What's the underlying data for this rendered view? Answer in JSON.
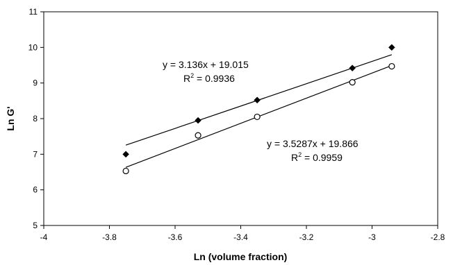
{
  "chart_data": {
    "type": "scatter",
    "xlabel": "Ln (volume fraction)",
    "ylabel": "Ln G'",
    "xlim": [
      -4,
      -2.8
    ],
    "ylim": [
      5,
      11
    ],
    "xticks": [
      "-4",
      "-3.8",
      "-3.6",
      "-3.4",
      "-3.2",
      "-3",
      "-2.8"
    ],
    "yticks": [
      "5",
      "6",
      "7",
      "8",
      "9",
      "10",
      "11"
    ],
    "xtick_values": [
      -4,
      -3.8,
      -3.6,
      -3.4,
      -3.2,
      -3,
      -2.8
    ],
    "ytick_values": [
      5,
      6,
      7,
      8,
      9,
      10,
      11
    ],
    "grid": false,
    "legend": "none",
    "series": [
      {
        "marker": "filled-diamond",
        "color": "#000000",
        "x": [
          -3.75,
          -3.53,
          -3.35,
          -3.06,
          -2.94
        ],
        "y": [
          7.0,
          7.95,
          8.52,
          9.42,
          10.0
        ],
        "trendline": {
          "slope": 3.136,
          "intercept": 19.015
        },
        "equation": "y = 3.136x + 19.015",
        "r2_label": "R",
        "r2_sup": "2",
        "r2_value": " = 0.9936"
      },
      {
        "marker": "open-circle",
        "color": "#000000",
        "x": [
          -3.75,
          -3.53,
          -3.35,
          -3.06,
          -2.94
        ],
        "y": [
          6.53,
          7.53,
          8.05,
          9.02,
          9.47
        ],
        "trendline": {
          "slope": 3.5287,
          "intercept": 19.866
        },
        "equation": "y = 3.5287x + 19.866",
        "r2_label": "R",
        "r2_sup": "2",
        "r2_value": " = 0.9959"
      }
    ]
  }
}
